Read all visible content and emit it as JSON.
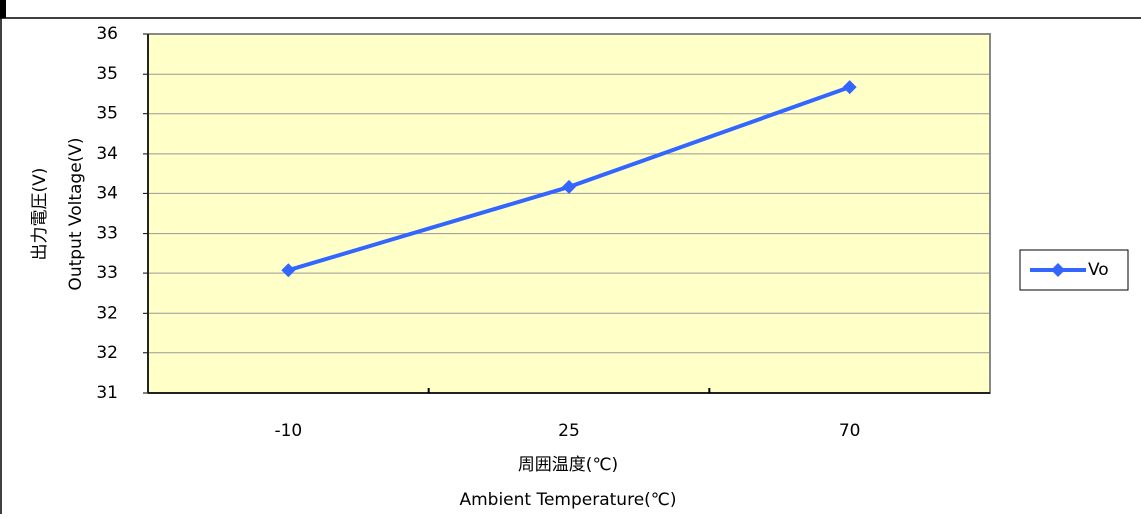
{
  "chart_data": {
    "type": "line",
    "y_title": [
      "出力電圧(V)",
      "Output Voltage(V)"
    ],
    "x_title": [
      "周囲温度(℃)",
      "Ambient Temperature(℃)"
    ],
    "categories": [
      "-10",
      "25",
      "70"
    ],
    "series": [
      {
        "name": "Vo",
        "color": "#3366ff",
        "values": [
          32.71,
          33.87,
          35.26
        ]
      }
    ],
    "ylim": [
      31,
      36
    ],
    "yticks": [
      31,
      {
        "value": 31.56,
        "label": "32"
      },
      {
        "value": 32.11,
        "label": "32"
      },
      {
        "value": 32.67,
        "label": "33"
      },
      {
        "value": 33.22,
        "label": "33"
      },
      {
        "value": 33.78,
        "label": "34"
      },
      {
        "value": 34.33,
        "label": "34"
      },
      {
        "value": 34.89,
        "label": "35"
      },
      {
        "value": 35.44,
        "label": "35"
      },
      36
    ],
    "grid": true,
    "plot_color": "#ffffc8",
    "legend": "right"
  }
}
